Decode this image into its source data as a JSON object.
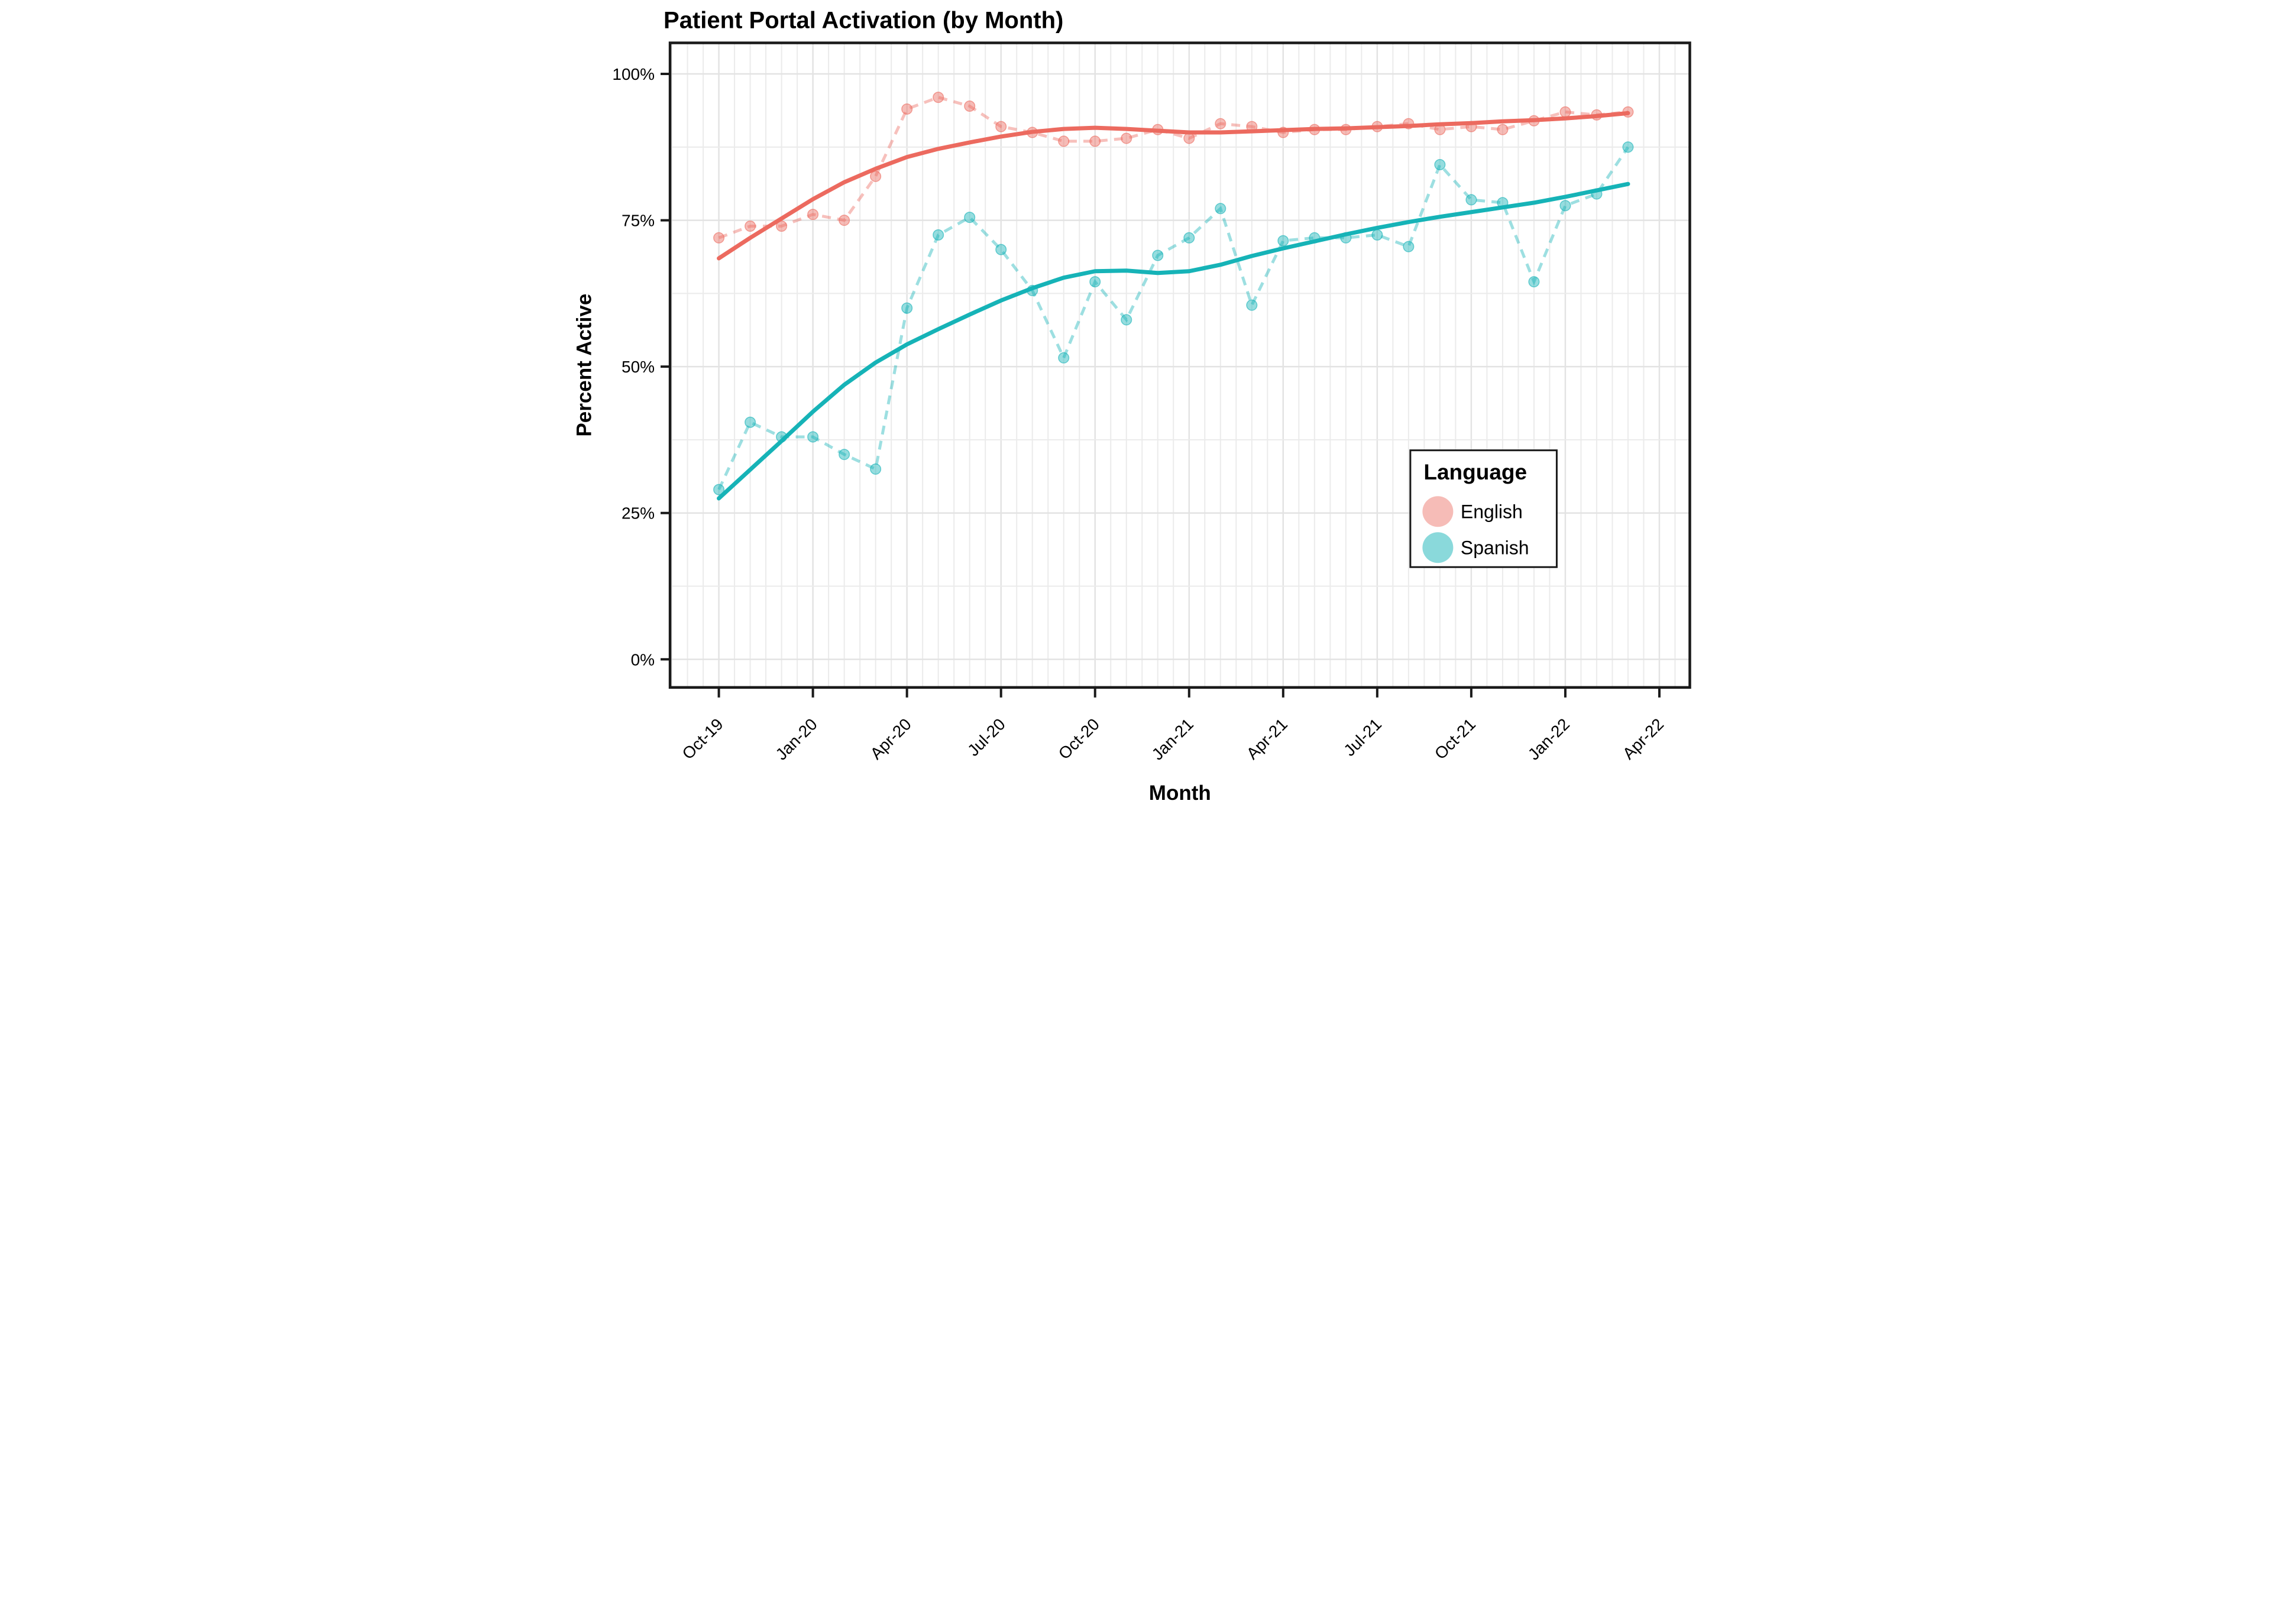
{
  "title": "Patient Portal Activation (by Month)",
  "axes": {
    "x_label": "Month",
    "y_label": "Percent Active"
  },
  "legend": {
    "title": "Language",
    "entries": [
      {
        "label": "English",
        "color": "#EC6A5F"
      },
      {
        "label": "Spanish",
        "color": "#16B3B7"
      }
    ]
  },
  "colors": {
    "english": "#EC6A5F",
    "spanish": "#16B3B7",
    "grid_minor": "#EBEBEB",
    "grid_major": "#E3E3E3",
    "axis": "#1A1A1A",
    "panel_background": "#FFFFFF"
  },
  "chart_data": {
    "type": "line",
    "title": "Patient Portal Activation (by Month)",
    "xlabel": "Month",
    "ylabel": "Percent Active",
    "ylim": [
      0,
      100
    ],
    "grid": "horizontal lines every 12.5%, vertical lines every half month",
    "legend_position": "inside right",
    "y_tick_values": [
      0,
      25,
      50,
      75,
      100
    ],
    "y_tick_labels": [
      "0%",
      "25%",
      "50%",
      "75%",
      "100%"
    ],
    "x_tick_indices": [
      0,
      3,
      6,
      9,
      12,
      15,
      18,
      21,
      24,
      27,
      30
    ],
    "x_tick_labels": [
      "Oct-19",
      "Jan-20",
      "Apr-20",
      "Jul-20",
      "Oct-20",
      "Jan-21",
      "Apr-21",
      "Jul-21",
      "Oct-21",
      "Jan-22",
      "Apr-22"
    ],
    "months": [
      "Oct-19",
      "Nov-19",
      "Dec-19",
      "Jan-20",
      "Feb-20",
      "Mar-20",
      "Apr-20",
      "May-20",
      "Jun-20",
      "Jul-20",
      "Aug-20",
      "Sep-20",
      "Oct-20",
      "Nov-20",
      "Dec-20",
      "Jan-21",
      "Feb-21",
      "Mar-21",
      "Apr-21",
      "May-21",
      "Jun-21",
      "Jul-21",
      "Aug-21",
      "Sep-21",
      "Oct-21",
      "Nov-21",
      "Dec-21",
      "Jan-22",
      "Feb-22",
      "Mar-22"
    ],
    "series": [
      {
        "name": "English",
        "color": "#EC6A5F",
        "points": [
          72,
          74,
          74,
          76,
          75,
          82.5,
          94,
          96,
          94.5,
          91,
          90,
          88.5,
          88.5,
          89,
          90.5,
          89,
          91.5,
          91,
          90,
          90.5,
          90.5,
          91,
          91.5,
          90.5,
          91,
          90.5,
          92,
          93.5,
          93,
          93.5
        ],
        "trend": [
          68.5,
          72,
          75.3,
          78.6,
          81.5,
          83.8,
          85.8,
          87.2,
          88.3,
          89.3,
          90.1,
          90.6,
          90.8,
          90.6,
          90.3,
          90,
          90,
          90.2,
          90.4,
          90.6,
          90.7,
          90.9,
          91.1,
          91.4,
          91.6,
          91.9,
          92.1,
          92.4,
          92.8,
          93.3
        ]
      },
      {
        "name": "Spanish",
        "color": "#16B3B7",
        "points": [
          29,
          40.5,
          38,
          38,
          35,
          32.5,
          60,
          72.5,
          75.5,
          70,
          63,
          51.5,
          64.5,
          58,
          69,
          72,
          77,
          60.5,
          71.5,
          72,
          72,
          72.5,
          70.5,
          84.5,
          78.5,
          78,
          64.5,
          77.5,
          79.5,
          87.5
        ],
        "trend": [
          27.5,
          32.4,
          37.3,
          42.3,
          46.9,
          50.7,
          53.8,
          56.4,
          58.9,
          61.3,
          63.4,
          65.2,
          66.3,
          66.4,
          66,
          66.3,
          67.4,
          68.9,
          70.2,
          71.4,
          72.6,
          73.7,
          74.7,
          75.6,
          76.4,
          77.2,
          78,
          79,
          80.1,
          81.2
        ]
      }
    ]
  }
}
